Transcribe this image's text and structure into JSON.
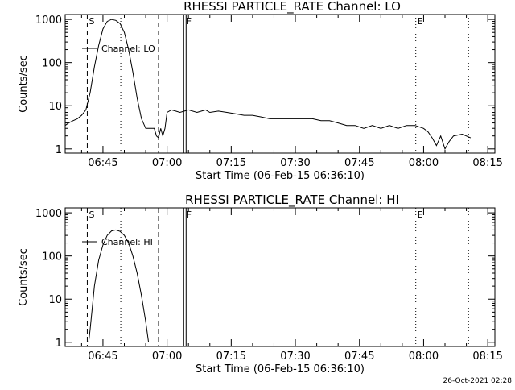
{
  "page": {
    "timestamp": "26-Oct-2021 02:28",
    "colors": {
      "background": "#ffffff",
      "foreground": "#000000"
    }
  },
  "chart_data": [
    {
      "type": "line",
      "title": "RHESSI PARTICLE_RATE Channel: LO",
      "xlabel": "Start Time (06-Feb-15 06:36:10)",
      "ylabel": "Counts/sec",
      "yscale": "log",
      "xlim": [
        "06:36:10",
        "08:16:40"
      ],
      "ylim": [
        0.8,
        1300
      ],
      "x_ticks": [
        "06:45",
        "07:00",
        "07:15",
        "07:30",
        "07:45",
        "08:00",
        "08:15"
      ],
      "y_ticks": [
        "1",
        "10",
        "100",
        "1000"
      ],
      "legend": {
        "placement": "top-left",
        "entries": [
          "Channel: LO"
        ]
      },
      "markers": [
        {
          "label": "S",
          "time": "06:41:20",
          "style": "dashed"
        },
        {
          "label": "",
          "time": "06:58:00",
          "style": "dashed"
        },
        {
          "label": "",
          "time": "06:49:10",
          "style": "dotted"
        },
        {
          "label": "F",
          "time": "07:04:10",
          "style": "solid-double"
        },
        {
          "label": "E",
          "time": "07:58:10",
          "style": "dotted"
        },
        {
          "label": "",
          "time": "08:10:30",
          "style": "dotted"
        }
      ],
      "series": [
        {
          "name": "Channel: LO",
          "x": [
            "06:36:10",
            "06:37:00",
            "06:38:00",
            "06:39:00",
            "06:40:00",
            "06:41:00",
            "06:42:00",
            "06:43:00",
            "06:44:00",
            "06:45:00",
            "06:46:00",
            "06:47:00",
            "06:48:00",
            "06:49:00",
            "06:50:00",
            "06:51:00",
            "06:52:00",
            "06:53:00",
            "06:54:00",
            "06:55:00",
            "06:56:00",
            "06:57:00",
            "06:57:30",
            "06:58:00",
            "06:58:30",
            "06:59:00",
            "06:59:30",
            "07:00:00",
            "07:01:00",
            "07:02:00",
            "07:03:00",
            "07:05:00",
            "07:07:00",
            "07:09:00",
            "07:10:00",
            "07:12:00",
            "07:14:00",
            "07:16:00",
            "07:18:00",
            "07:20:00",
            "07:22:00",
            "07:24:00",
            "07:26:00",
            "07:28:00",
            "07:30:00",
            "07:32:00",
            "07:34:00",
            "07:36:00",
            "07:38:00",
            "07:40:00",
            "07:42:00",
            "07:44:00",
            "07:46:00",
            "07:48:00",
            "07:50:00",
            "07:52:00",
            "07:54:00",
            "07:56:00",
            "07:58:00",
            "08:00:00",
            "08:01:00",
            "08:02:00",
            "08:03:00",
            "08:04:00",
            "08:05:00",
            "08:06:00",
            "08:07:00",
            "08:09:00",
            "08:11:00"
          ],
          "values": [
            3.5,
            4,
            4.5,
            5,
            6,
            8,
            20,
            80,
            250,
            600,
            900,
            1000,
            950,
            800,
            500,
            200,
            60,
            15,
            5,
            3,
            3,
            3,
            2,
            1.8,
            3,
            2,
            3,
            7,
            8,
            7.5,
            7,
            8,
            7,
            8,
            7,
            7.5,
            7,
            6.5,
            6,
            6,
            5.5,
            5,
            5,
            5,
            5,
            5,
            5,
            4.5,
            4.5,
            4,
            3.5,
            3.5,
            3,
            3.5,
            3,
            3.5,
            3,
            3.5,
            3.5,
            3,
            2.5,
            1.8,
            1.2,
            2,
            1,
            1.5,
            2,
            2.2,
            1.8
          ]
        }
      ]
    },
    {
      "type": "line",
      "title": "RHESSI PARTICLE_RATE Channel: HI",
      "xlabel": "Start Time (06-Feb-15 06:36:10)",
      "ylabel": "Counts/sec",
      "yscale": "log",
      "xlim": [
        "06:36:10",
        "08:16:40"
      ],
      "ylim": [
        0.8,
        1300
      ],
      "x_ticks": [
        "06:45",
        "07:00",
        "07:15",
        "07:30",
        "07:45",
        "08:00",
        "08:15"
      ],
      "y_ticks": [
        "1",
        "10",
        "100",
        "1000"
      ],
      "legend": {
        "placement": "top-left",
        "entries": [
          "Channel: HI"
        ]
      },
      "markers": [
        {
          "label": "S",
          "time": "06:41:20",
          "style": "dashed"
        },
        {
          "label": "",
          "time": "06:58:00",
          "style": "dashed"
        },
        {
          "label": "",
          "time": "06:49:10",
          "style": "dotted"
        },
        {
          "label": "F",
          "time": "07:04:10",
          "style": "solid-double"
        },
        {
          "label": "E",
          "time": "07:58:10",
          "style": "dotted"
        },
        {
          "label": "",
          "time": "08:10:30",
          "style": "dotted"
        }
      ],
      "series": [
        {
          "name": "Channel: HI",
          "x": [
            "06:41:40",
            "06:42:00",
            "06:43:00",
            "06:44:00",
            "06:45:00",
            "06:46:00",
            "06:47:00",
            "06:48:00",
            "06:49:00",
            "06:50:00",
            "06:51:00",
            "06:52:00",
            "06:53:00",
            "06:54:00",
            "06:55:00",
            "06:55:40"
          ],
          "values": [
            1,
            2,
            20,
            80,
            180,
            300,
            380,
            400,
            370,
            300,
            200,
            100,
            40,
            12,
            3,
            1
          ]
        }
      ]
    }
  ]
}
